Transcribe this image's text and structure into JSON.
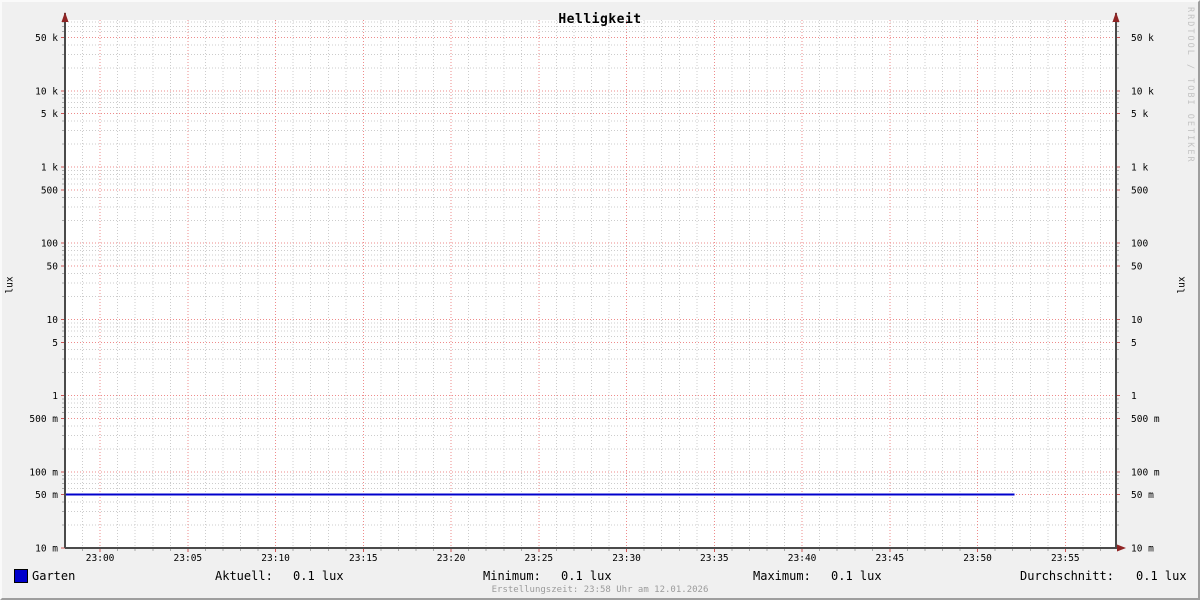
{
  "title": "Helligkeit",
  "watermark": "RRDTOOL / TOBI OETIKER",
  "footer": "Erstellungszeit: 23:58 Uhr am 12.01.2026",
  "y_axis_label_left": "lux",
  "y_axis_label_right": "lux",
  "legend": {
    "series": [
      {
        "label": "Garten",
        "color": "#0000cc"
      }
    ],
    "stats": [
      {
        "label": "Aktuell:",
        "value": "0.1 lux"
      },
      {
        "label": "Minimum:",
        "value": "0.1 lux"
      },
      {
        "label": "Maximum:",
        "value": "0.1 lux"
      },
      {
        "label": "Durchschnitt:",
        "value": "0.1 lux"
      }
    ]
  },
  "colors": {
    "background": "#f0f0f0",
    "plot_background": "#ffffff",
    "grid_minor": "#cccccc",
    "grid_major": "#ee8b8b",
    "tick_major": "#cc5555",
    "tick_minor": "#aaaaaa",
    "axis": "#4a4a4a",
    "arrow": "#8f2424",
    "line": "#0000cc",
    "footer_text": "#9b9b9b",
    "watermark_text": "#c3c3c3"
  },
  "chart_data": {
    "type": "line",
    "title": "Helligkeit",
    "ylabel": "lux",
    "y_scale": "log",
    "ylim": [
      0.01,
      100000
    ],
    "grid": true,
    "x_axis": {
      "start_minute": -2,
      "end_minute": 58,
      "minor_step_min": 1,
      "major_step_min": 5
    },
    "x_ticks": [
      {
        "label": "23:00",
        "minute": 0
      },
      {
        "label": "23:05",
        "minute": 5
      },
      {
        "label": "23:10",
        "minute": 10
      },
      {
        "label": "23:15",
        "minute": 15
      },
      {
        "label": "23:20",
        "minute": 20
      },
      {
        "label": "23:25",
        "minute": 25
      },
      {
        "label": "23:30",
        "minute": 30
      },
      {
        "label": "23:35",
        "minute": 35
      },
      {
        "label": "23:40",
        "minute": 40
      },
      {
        "label": "23:45",
        "minute": 45
      },
      {
        "label": "23:50",
        "minute": 50
      },
      {
        "label": "23:55",
        "minute": 55
      }
    ],
    "y_ticks": [
      {
        "label": "50 k",
        "value": 50000
      },
      {
        "label": "10 k",
        "value": 10000
      },
      {
        "label": "5 k",
        "value": 5000
      },
      {
        "label": "1 k",
        "value": 1000
      },
      {
        "label": "500",
        "value": 500
      },
      {
        "label": "100",
        "value": 100
      },
      {
        "label": "50",
        "value": 50
      },
      {
        "label": "10",
        "value": 10
      },
      {
        "label": "5",
        "value": 5
      },
      {
        "label": "1",
        "value": 1
      },
      {
        "label": "500 m",
        "value": 0.5
      },
      {
        "label": "100 m",
        "value": 0.1
      },
      {
        "label": "50 m",
        "value": 0.05
      },
      {
        "label": "10 m",
        "value": 0.01
      }
    ],
    "y_minor_multiples": [
      2,
      3,
      4,
      6,
      7,
      8,
      9
    ],
    "series": [
      {
        "name": "Garten",
        "color": "#0000cc",
        "value_lux": 0.05,
        "start_minute": -2,
        "end_minute": 52
      }
    ]
  }
}
